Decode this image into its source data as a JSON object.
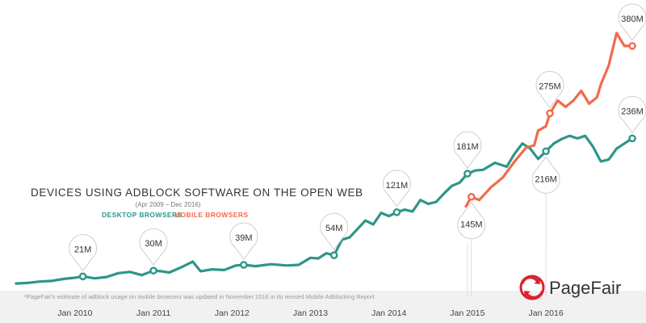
{
  "chart_data": {
    "type": "line",
    "title": "DEVICES USING ADBLOCK SOFTWARE ON THE OPEN WEB",
    "subtitle": "(Apr 2009 – Dec 2016)",
    "x_ticks": [
      "Jan 2010",
      "Jan 2011",
      "Jan 2012",
      "Jan 2013",
      "Jan 2014",
      "Jan 2015",
      "Jan 2016"
    ],
    "x_range": [
      2009.25,
      2017.0
    ],
    "y_range": [
      0,
      400
    ],
    "ylabel": "",
    "xlabel": "",
    "grid": false,
    "legend_placement": "below-title",
    "series": [
      {
        "name": "DESKTOP BROWSERS",
        "color": "#2e9687",
        "points": [
          [
            2009.25,
            10
          ],
          [
            2009.4,
            11
          ],
          [
            2009.55,
            13
          ],
          [
            2009.7,
            14
          ],
          [
            2009.85,
            17
          ],
          [
            2010.0,
            19
          ],
          [
            2010.1,
            21
          ],
          [
            2010.25,
            18
          ],
          [
            2010.4,
            20
          ],
          [
            2010.55,
            26
          ],
          [
            2010.7,
            28
          ],
          [
            2010.85,
            23
          ],
          [
            2011.0,
            30
          ],
          [
            2011.1,
            29
          ],
          [
            2011.2,
            27
          ],
          [
            2011.35,
            35
          ],
          [
            2011.5,
            44
          ],
          [
            2011.6,
            29
          ],
          [
            2011.75,
            32
          ],
          [
            2011.9,
            31
          ],
          [
            2012.05,
            38
          ],
          [
            2012.15,
            39
          ],
          [
            2012.3,
            37
          ],
          [
            2012.5,
            40
          ],
          [
            2012.7,
            38
          ],
          [
            2012.85,
            39
          ],
          [
            2013.0,
            50
          ],
          [
            2013.1,
            49
          ],
          [
            2013.2,
            57
          ],
          [
            2013.3,
            54
          ],
          [
            2013.4,
            78
          ],
          [
            2013.5,
            82
          ],
          [
            2013.6,
            95
          ],
          [
            2013.7,
            108
          ],
          [
            2013.8,
            102
          ],
          [
            2013.9,
            120
          ],
          [
            2014.0,
            115
          ],
          [
            2014.1,
            121
          ],
          [
            2014.2,
            125
          ],
          [
            2014.3,
            122
          ],
          [
            2014.4,
            140
          ],
          [
            2014.5,
            134
          ],
          [
            2014.6,
            137
          ],
          [
            2014.7,
            150
          ],
          [
            2014.8,
            162
          ],
          [
            2014.9,
            167
          ],
          [
            2015.0,
            181
          ],
          [
            2015.1,
            186
          ],
          [
            2015.2,
            187
          ],
          [
            2015.35,
            198
          ],
          [
            2015.5,
            192
          ],
          [
            2015.6,
            212
          ],
          [
            2015.7,
            228
          ],
          [
            2015.8,
            220
          ],
          [
            2015.9,
            204
          ],
          [
            2016.0,
            216
          ],
          [
            2016.1,
            228
          ],
          [
            2016.2,
            235
          ],
          [
            2016.3,
            240
          ],
          [
            2016.4,
            236
          ],
          [
            2016.5,
            240
          ],
          [
            2016.6,
            223
          ],
          [
            2016.7,
            200
          ],
          [
            2016.8,
            203
          ],
          [
            2016.9,
            220
          ],
          [
            2017.0,
            228
          ],
          [
            2017.1,
            236
          ]
        ]
      },
      {
        "name": "MOBILE BROWSERS",
        "color": "#f26a4b",
        "points": [
          [
            2014.98,
            130
          ],
          [
            2015.05,
            145
          ],
          [
            2015.15,
            140
          ],
          [
            2015.3,
            160
          ],
          [
            2015.45,
            175
          ],
          [
            2015.6,
            200
          ],
          [
            2015.75,
            222
          ],
          [
            2015.85,
            225
          ],
          [
            2015.9,
            248
          ],
          [
            2016.0,
            255
          ],
          [
            2016.05,
            275
          ],
          [
            2016.15,
            295
          ],
          [
            2016.25,
            285
          ],
          [
            2016.35,
            295
          ],
          [
            2016.45,
            310
          ],
          [
            2016.55,
            290
          ],
          [
            2016.65,
            300
          ],
          [
            2016.7,
            320
          ],
          [
            2016.8,
            350
          ],
          [
            2016.9,
            400
          ],
          [
            2017.0,
            380
          ],
          [
            2017.1,
            380
          ]
        ]
      }
    ],
    "annotations": [
      {
        "label": "21M",
        "series": 0,
        "x": 2010.1,
        "y": 21,
        "pos": "above"
      },
      {
        "label": "30M",
        "series": 0,
        "x": 2011.0,
        "y": 30,
        "pos": "above"
      },
      {
        "label": "39M",
        "series": 0,
        "x": 2012.15,
        "y": 39,
        "pos": "above"
      },
      {
        "label": "54M",
        "series": 0,
        "x": 2013.3,
        "y": 54,
        "pos": "above"
      },
      {
        "label": "121M",
        "series": 0,
        "x": 2014.1,
        "y": 121,
        "pos": "above"
      },
      {
        "label": "181M",
        "series": 0,
        "x": 2015.0,
        "y": 181,
        "pos": "above"
      },
      {
        "label": "216M",
        "series": 0,
        "x": 2016.0,
        "y": 216,
        "pos": "below"
      },
      {
        "label": "236M",
        "series": 0,
        "x": 2017.1,
        "y": 236,
        "pos": "above"
      },
      {
        "label": "145M",
        "series": 1,
        "x": 2015.05,
        "y": 145,
        "pos": "below"
      },
      {
        "label": "275M",
        "series": 1,
        "x": 2016.05,
        "y": 275,
        "pos": "above"
      },
      {
        "label": "380M",
        "series": 1,
        "x": 2017.1,
        "y": 380,
        "pos": "above"
      }
    ]
  },
  "footnote": "*PageFair's estimate of adblock usage on mobile browsers was updated in November 2016 in its revised Mobile Adblocking Report",
  "brand": {
    "name": "PageFair",
    "color": "#d9232e"
  }
}
